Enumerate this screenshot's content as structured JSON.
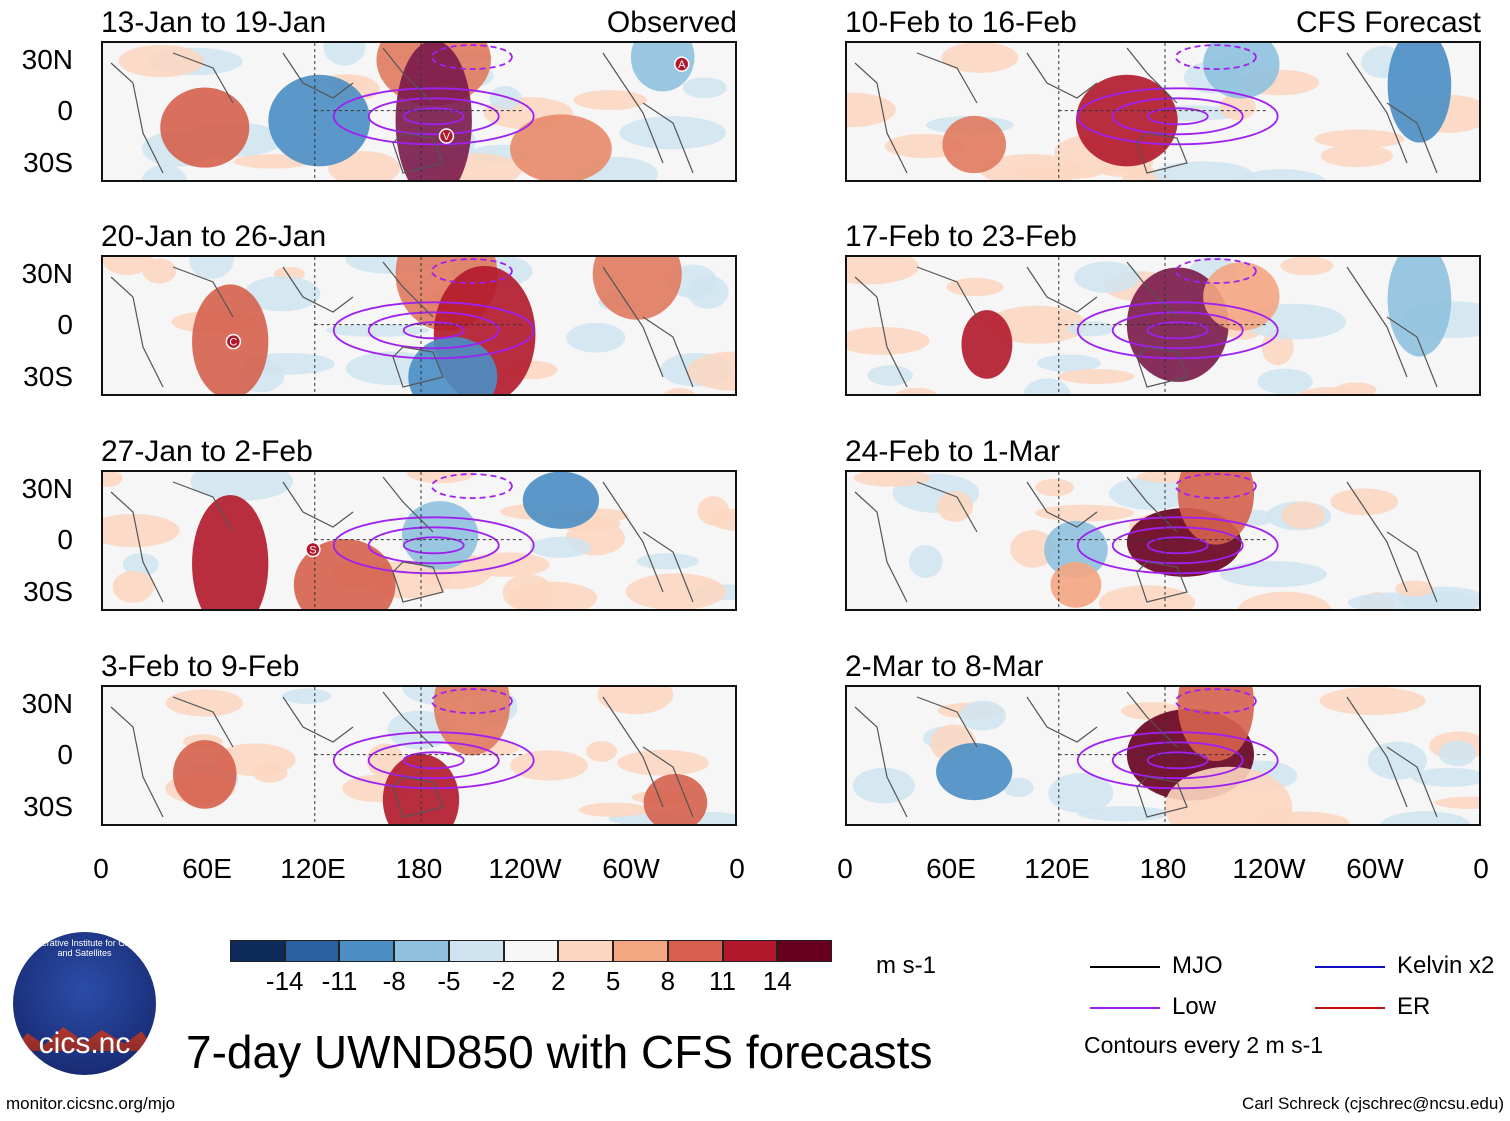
{
  "title": "7-day UWND850 with CFS forecasts",
  "footer": {
    "left": "monitor.cicsnc.org/mjo",
    "right": "Carl Schreck (cjschrec@ncsu.edu)"
  },
  "logo": {
    "text": "cics.nc",
    "ring_text": "Cooperative Institute for Climate and Satellites"
  },
  "lat_labels": [
    "30N",
    "0",
    "30S"
  ],
  "lon_labels": [
    "0",
    "60E",
    "120E",
    "180",
    "120W",
    "60W",
    "0"
  ],
  "columns": {
    "left_tag": "Observed",
    "right_tag": "CFS Forecast"
  },
  "panels": [
    {
      "title": "13-Jan to 19-Jan",
      "markers": [
        "A",
        "V"
      ]
    },
    {
      "title": "20-Jan to 26-Jan",
      "markers": [
        "C"
      ]
    },
    {
      "title": "27-Jan to 2-Feb",
      "markers": [
        "S"
      ]
    },
    {
      "title": "3-Feb to 9-Feb",
      "markers": []
    },
    {
      "title": "10-Feb to 16-Feb",
      "markers": []
    },
    {
      "title": "17-Feb to 23-Feb",
      "markers": []
    },
    {
      "title": "24-Feb to 1-Mar",
      "markers": []
    },
    {
      "title": "2-Mar to 8-Mar",
      "markers": []
    }
  ],
  "colorbar": {
    "ticks": [
      "-14",
      "-11",
      "-8",
      "-5",
      "-2",
      "2",
      "5",
      "8",
      "11",
      "14"
    ],
    "colors": [
      "#0d2a5a",
      "#2a5fa0",
      "#4a8ec4",
      "#8fc1de",
      "#cfe4f0",
      "#f7f7f7",
      "#fcd6c0",
      "#f4a582",
      "#d6604d",
      "#b2182b",
      "#67001f"
    ],
    "units": "m s-1"
  },
  "legend": {
    "items": [
      {
        "label": "MJO",
        "color": "#000000"
      },
      {
        "label": "Kelvin x2",
        "color": "#1010c0"
      },
      {
        "label": "Low",
        "color": "#a020f0"
      },
      {
        "label": "ER",
        "color": "#c01010"
      }
    ],
    "note": "Contours every 2 m s-1"
  }
}
